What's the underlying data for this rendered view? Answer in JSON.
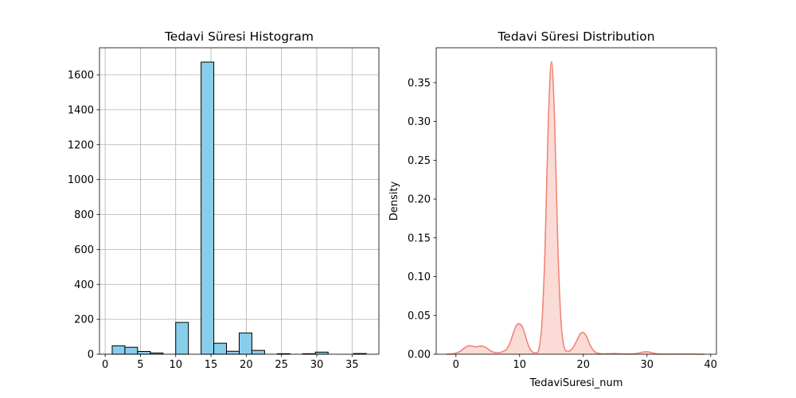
{
  "chart_data": [
    {
      "type": "bar",
      "title": "Tedavi Süresi Histogram",
      "xlabel": "",
      "ylabel": "",
      "xlim": [
        -0.8,
        38.8
      ],
      "ylim": [
        0,
        1755
      ],
      "xticks": [
        0,
        5,
        10,
        15,
        20,
        25,
        30,
        35
      ],
      "yticks": [
        0,
        200,
        400,
        600,
        800,
        1000,
        1200,
        1400,
        1600
      ],
      "grid": true,
      "bar_color": "#87ceeb",
      "edge_color": "#000000",
      "bins": [
        {
          "x0": 1.0,
          "x1": 2.8,
          "count": 48
        },
        {
          "x0": 2.8,
          "x1": 4.6,
          "count": 40
        },
        {
          "x0": 4.6,
          "x1": 6.4,
          "count": 16
        },
        {
          "x0": 6.4,
          "x1": 8.2,
          "count": 7
        },
        {
          "x0": 8.2,
          "x1": 10.0,
          "count": 0
        },
        {
          "x0": 10.0,
          "x1": 11.8,
          "count": 182
        },
        {
          "x0": 11.8,
          "x1": 13.6,
          "count": 0
        },
        {
          "x0": 13.6,
          "x1": 15.4,
          "count": 1673
        },
        {
          "x0": 15.4,
          "x1": 17.2,
          "count": 63
        },
        {
          "x0": 17.2,
          "x1": 19.0,
          "count": 17
        },
        {
          "x0": 19.0,
          "x1": 20.8,
          "count": 122
        },
        {
          "x0": 20.8,
          "x1": 22.6,
          "count": 22
        },
        {
          "x0": 22.6,
          "x1": 24.4,
          "count": 0
        },
        {
          "x0": 24.4,
          "x1": 26.2,
          "count": 3
        },
        {
          "x0": 26.2,
          "x1": 28.0,
          "count": 0
        },
        {
          "x0": 28.0,
          "x1": 29.8,
          "count": 3
        },
        {
          "x0": 29.8,
          "x1": 31.6,
          "count": 12
        },
        {
          "x0": 31.6,
          "x1": 33.4,
          "count": 0
        },
        {
          "x0": 33.4,
          "x1": 35.2,
          "count": 0
        },
        {
          "x0": 35.2,
          "x1": 37.0,
          "count": 4
        }
      ]
    },
    {
      "type": "area",
      "title": "Tedavi Süresi Distribution",
      "xlabel": "TedaviSuresi_num",
      "ylabel": "Density",
      "xlim": [
        -3.1,
        40.9
      ],
      "ylim": [
        0,
        0.395
      ],
      "xticks": [
        0,
        10,
        20,
        30,
        40
      ],
      "yticks": [
        0.0,
        0.05,
        0.1,
        0.15,
        0.2,
        0.25,
        0.3,
        0.35
      ],
      "ytick_labels": [
        "0.00",
        "0.05",
        "0.10",
        "0.15",
        "0.20",
        "0.25",
        "0.30",
        "0.35"
      ],
      "grid": false,
      "line_color": "#f08070",
      "fill_color": "#fadbd6",
      "x": [
        -1.5,
        -0.5,
        0.5,
        1.0,
        1.5,
        2.0,
        2.5,
        3.0,
        3.5,
        4.0,
        4.5,
        5.0,
        5.5,
        6.0,
        6.5,
        7.0,
        7.5,
        8.0,
        8.5,
        9.0,
        9.5,
        10.0,
        10.5,
        11.0,
        11.5,
        12.0,
        12.5,
        13.0,
        13.5,
        14.0,
        14.5,
        15.0,
        15.5,
        16.0,
        16.5,
        17.0,
        17.5,
        18.0,
        18.5,
        19.0,
        19.5,
        20.0,
        20.5,
        21.0,
        21.5,
        22.0,
        22.5,
        23.0,
        24.0,
        25.0,
        26.0,
        27.0,
        28.0,
        28.5,
        29.0,
        29.5,
        30.0,
        30.5,
        31.0,
        31.5,
        32.0,
        33.0,
        34.0,
        35.0,
        36.0,
        37.0,
        38.0,
        39.0
      ],
      "y": [
        0.0,
        0.0005,
        0.003,
        0.006,
        0.009,
        0.011,
        0.0105,
        0.0095,
        0.01,
        0.0105,
        0.0095,
        0.007,
        0.004,
        0.0025,
        0.002,
        0.0025,
        0.004,
        0.007,
        0.015,
        0.027,
        0.037,
        0.039,
        0.034,
        0.021,
        0.009,
        0.003,
        0.002,
        0.006,
        0.04,
        0.14,
        0.3,
        0.377,
        0.3,
        0.14,
        0.042,
        0.009,
        0.004,
        0.005,
        0.01,
        0.018,
        0.026,
        0.028,
        0.023,
        0.013,
        0.006,
        0.002,
        0.001,
        0.0005,
        0.0007,
        0.0009,
        0.0005,
        0.0003,
        0.0005,
        0.0012,
        0.0022,
        0.003,
        0.0032,
        0.0025,
        0.0015,
        0.0006,
        0.0002,
        0.0001,
        0.0002,
        0.0003,
        0.0003,
        0.0002,
        0.0001,
        0.0
      ]
    }
  ]
}
